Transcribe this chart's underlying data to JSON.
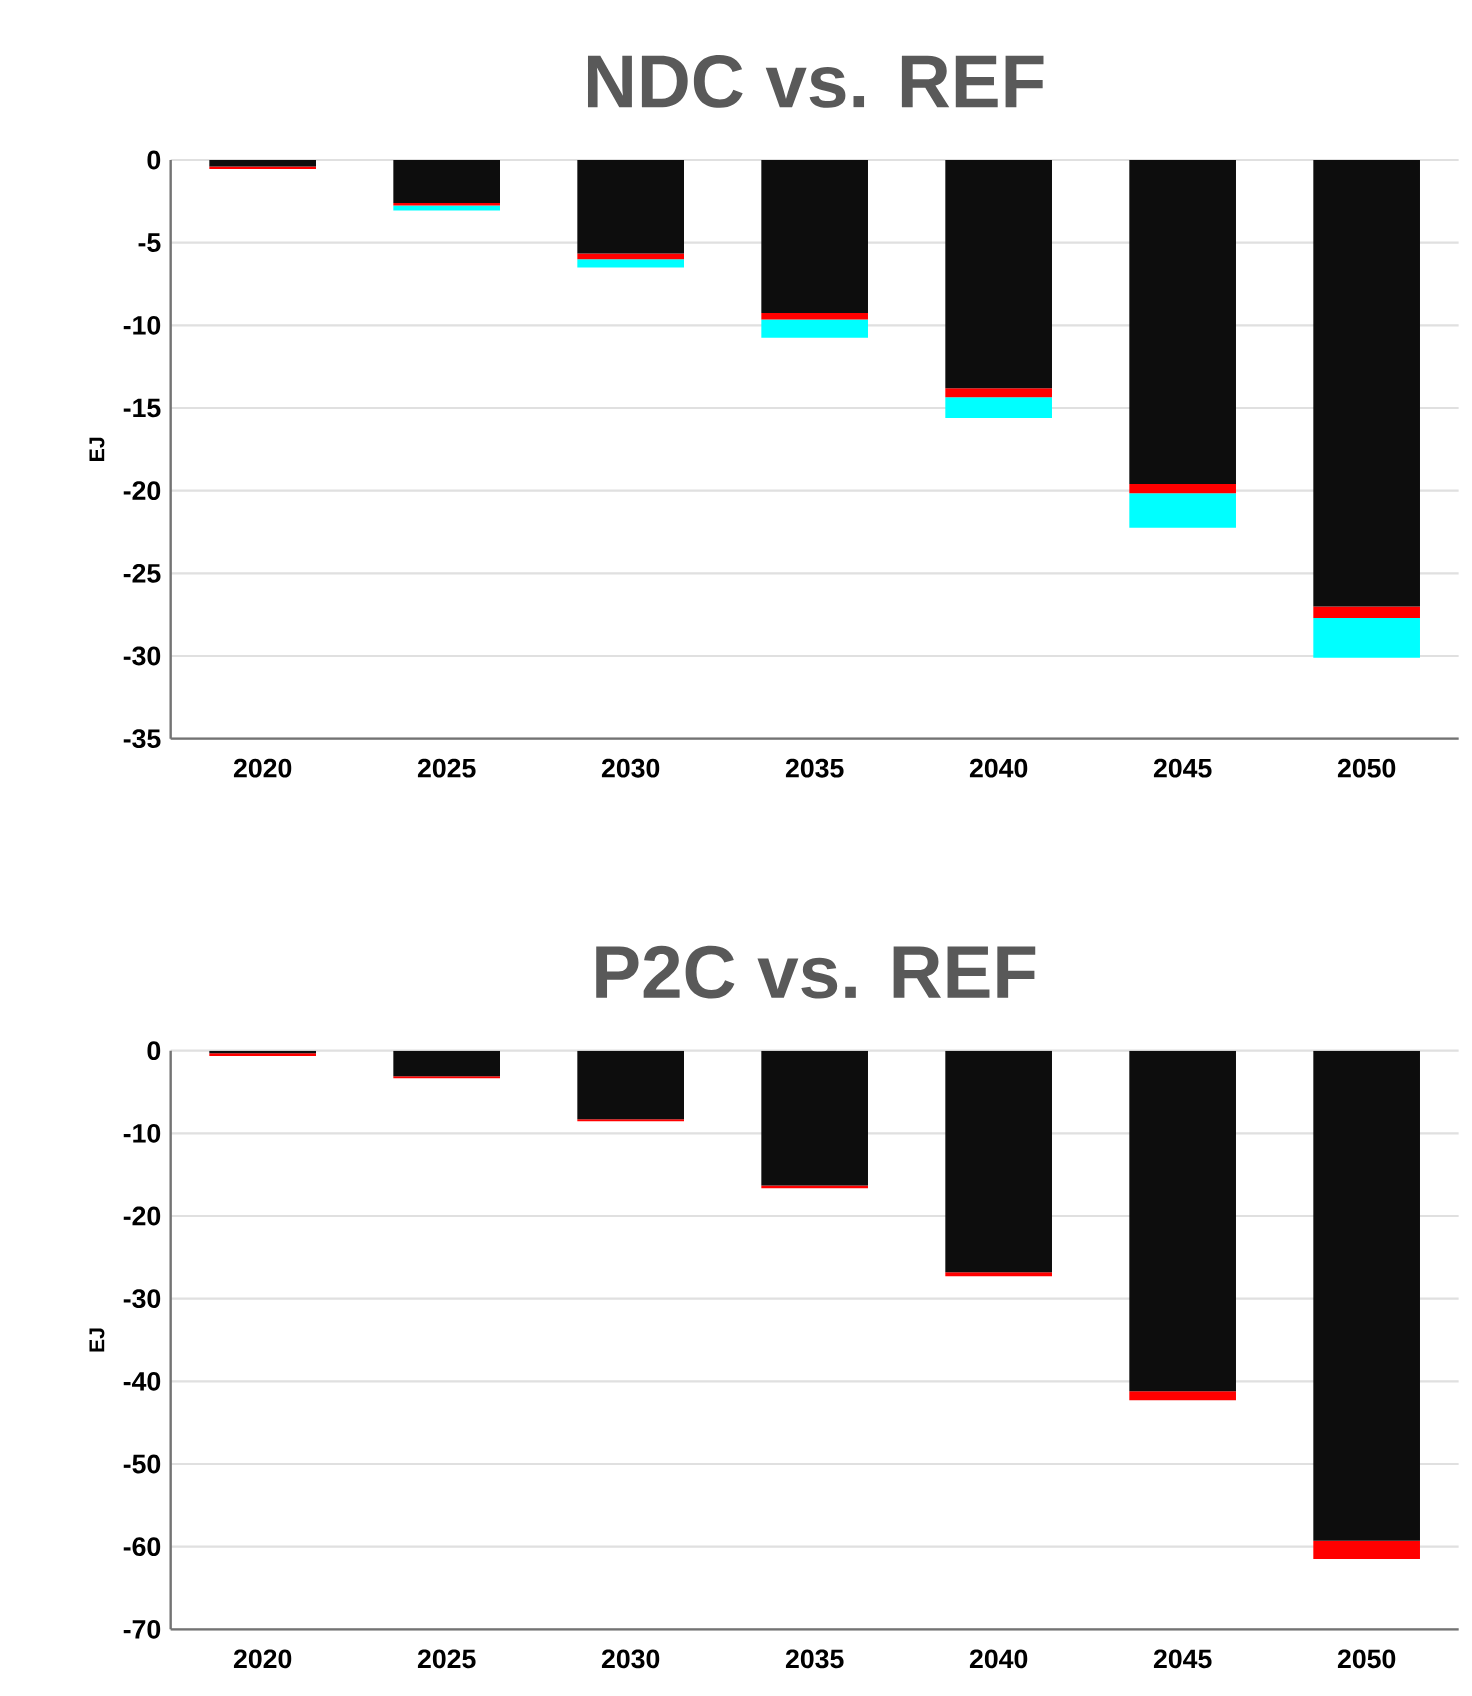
{
  "chart_data": [
    {
      "type": "bar",
      "title": "NDC vs. REF",
      "ylabel": "EJ",
      "stacked": true,
      "grid": "y",
      "categories": [
        "2020",
        "2025",
        "2030",
        "2035",
        "2040",
        "2045",
        "2050"
      ],
      "ylim": [
        -35,
        0
      ],
      "yticks": [
        -35,
        -30,
        -25,
        -20,
        -15,
        -10,
        -5,
        0
      ],
      "series": [
        {
          "color": "#0d0d0d",
          "values": [
            -0.4,
            -2.6,
            -5.65,
            -9.25,
            -13.8,
            -19.6,
            -27.0
          ]
        },
        {
          "color": "#ff0000",
          "values": [
            -0.15,
            -0.15,
            -0.35,
            -0.4,
            -0.55,
            -0.55,
            -0.7
          ]
        },
        {
          "color": "#00ffff",
          "values": [
            0,
            -0.3,
            -0.5,
            -1.1,
            -1.25,
            -2.1,
            -2.4
          ]
        }
      ]
    },
    {
      "type": "bar",
      "title": "P2C vs. REF",
      "ylabel": "EJ",
      "stacked": true,
      "grid": "y",
      "categories": [
        "2020",
        "2025",
        "2030",
        "2035",
        "2040",
        "2045",
        "2050"
      ],
      "ylim": [
        -70,
        0
      ],
      "yticks": [
        -70,
        -60,
        -50,
        -40,
        -30,
        -20,
        -10,
        0
      ],
      "series": [
        {
          "color": "#0d0d0d",
          "values": [
            -0.3,
            -3.1,
            -8.3,
            -16.3,
            -26.8,
            -41.2,
            -59.3
          ]
        },
        {
          "color": "#ff0000",
          "values": [
            -0.35,
            -0.25,
            -0.25,
            -0.35,
            -0.5,
            -1.1,
            -2.2
          ]
        }
      ]
    }
  ]
}
